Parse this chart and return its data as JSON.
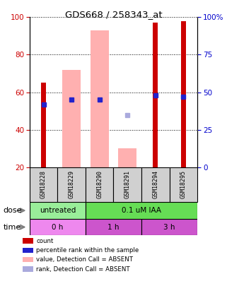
{
  "title": "GDS668 / 258343_at",
  "samples": [
    "GSM18228",
    "GSM18229",
    "GSM18290",
    "GSM18291",
    "GSM18294",
    "GSM18295"
  ],
  "red_bars": [
    65,
    0,
    0,
    0,
    97,
    98
  ],
  "pink_bars": [
    0,
    72,
    93,
    30,
    0,
    0
  ],
  "blue_dots": [
    42,
    45,
    45,
    0,
    48,
    47
  ],
  "lightblue_dots": [
    0,
    0,
    0,
    35,
    0,
    0
  ],
  "ylim_left": [
    20,
    100
  ],
  "yticks_left": [
    20,
    40,
    60,
    80,
    100
  ],
  "ytick_labels_right": [
    "0",
    "25",
    "50",
    "75",
    "100%"
  ],
  "red_color": "#cc0000",
  "pink_color": "#ffb0b0",
  "blue_color": "#2222cc",
  "lightblue_color": "#aaaadd",
  "sample_bg": "#d0d0d0",
  "left_axis_color": "#cc0000",
  "right_axis_color": "#0000cc",
  "dose_untreated_color": "#99ee99",
  "dose_iaa_color": "#66dd55",
  "time_0h_color": "#ee88ee",
  "time_1h_color": "#cc55cc",
  "time_3h_color": "#cc55cc"
}
